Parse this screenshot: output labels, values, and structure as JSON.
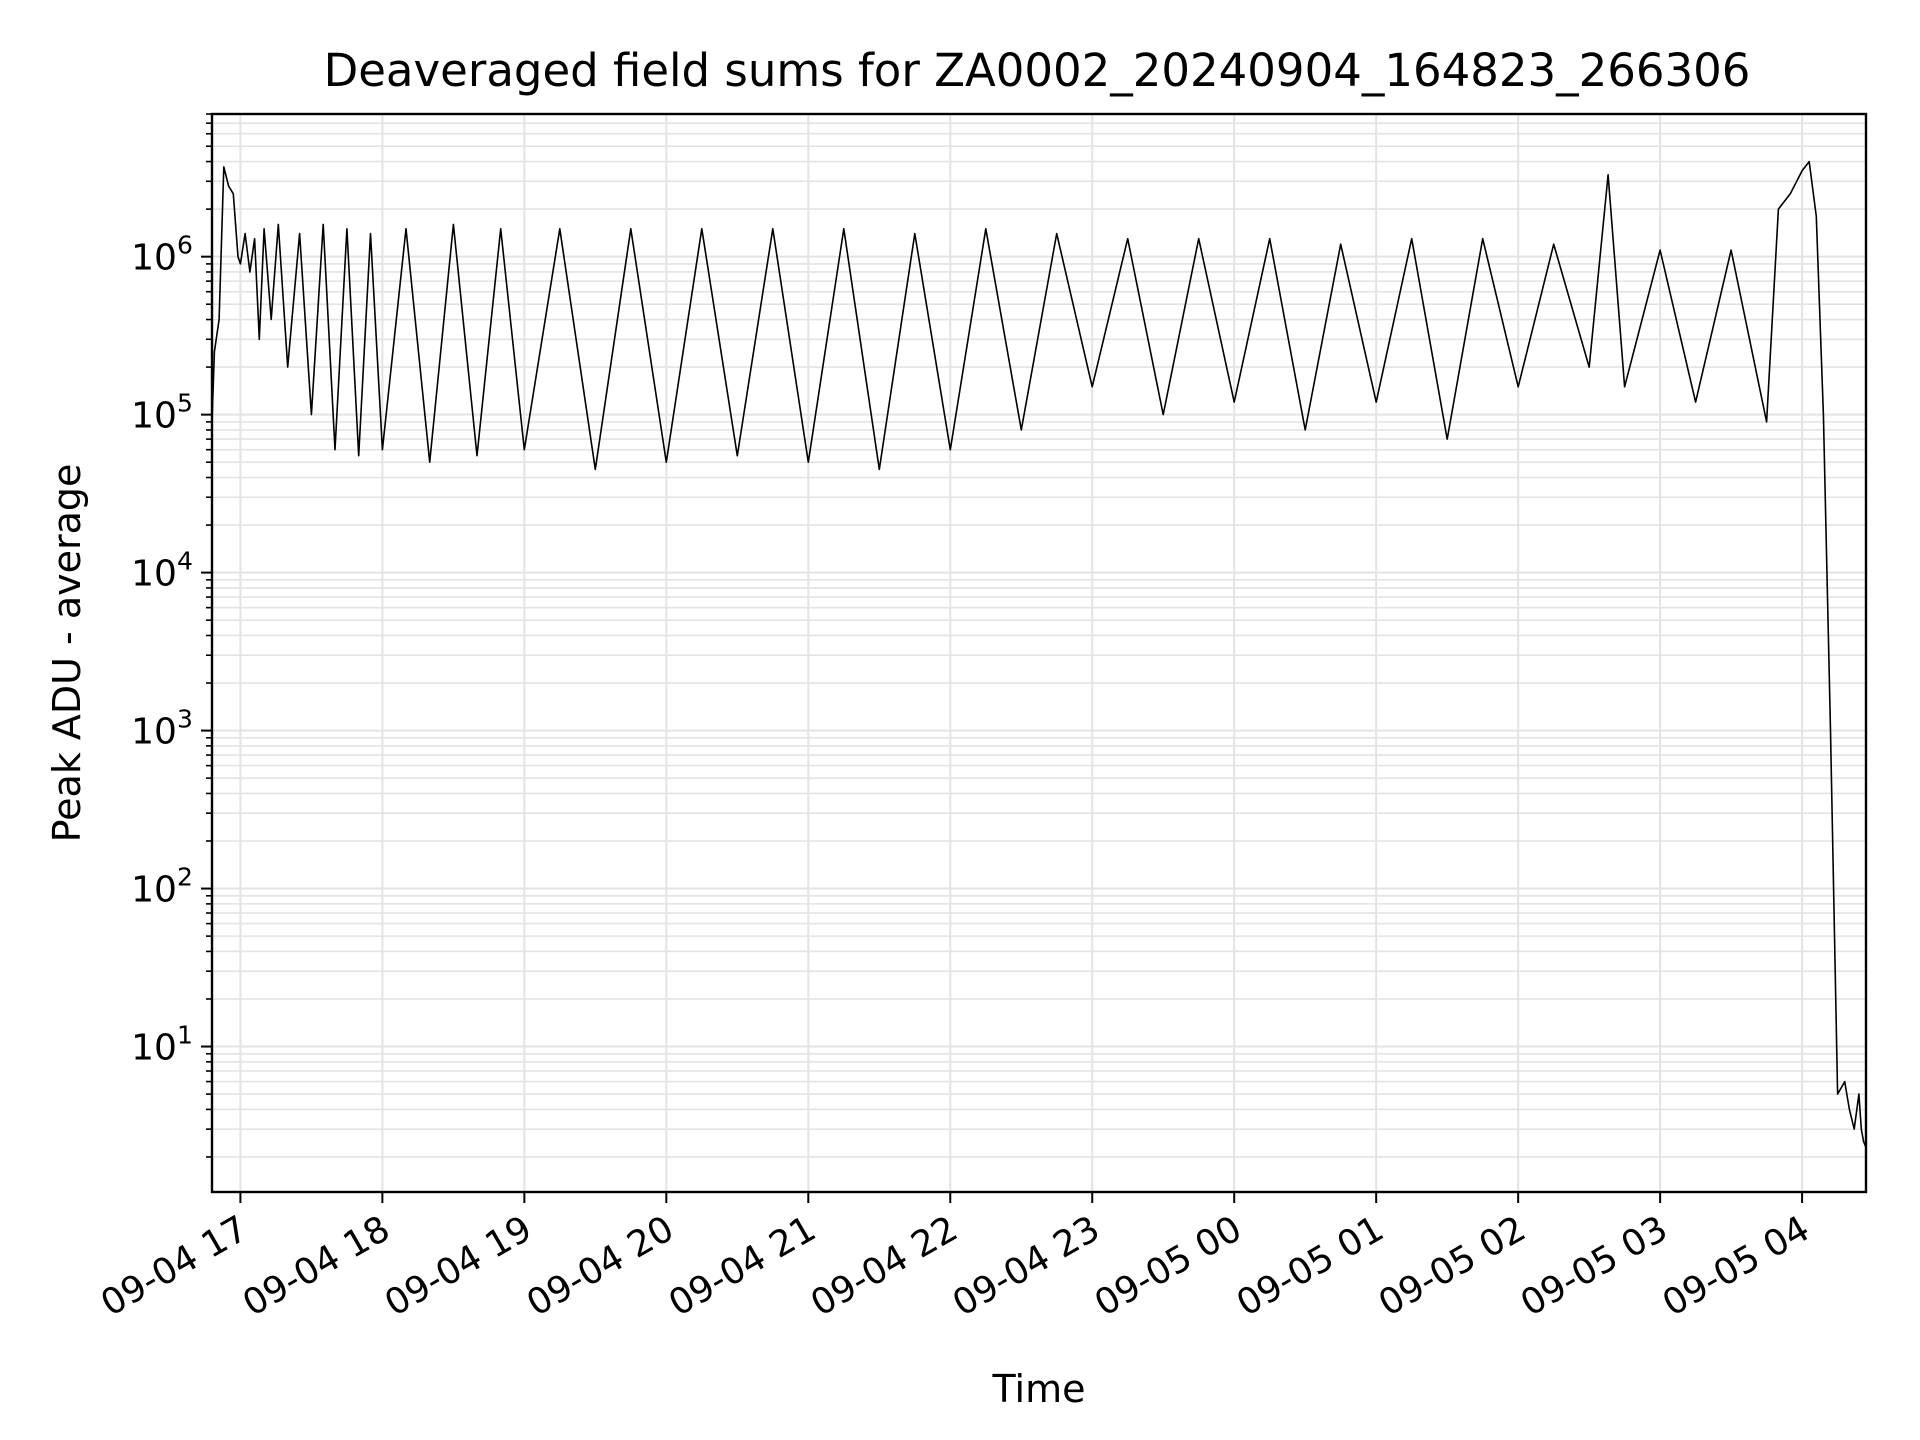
{
  "chart_data": {
    "type": "line",
    "title": "Deaveraged field sums for ZA0002_20240904_164823_266306",
    "xlabel": "Time",
    "ylabel": "Peak ADU - average",
    "x_tick_labels": [
      "09-04 17",
      "09-04 18",
      "09-04 19",
      "09-04 20",
      "09-04 21",
      "09-04 22",
      "09-04 23",
      "09-05 00",
      "09-05 01",
      "09-05 02",
      "09-05 03",
      "09-05 04"
    ],
    "x_ticks": [
      "2024-09-04T17:00",
      "2024-09-04T18:00",
      "2024-09-04T19:00",
      "2024-09-04T20:00",
      "2024-09-04T21:00",
      "2024-09-04T22:00",
      "2024-09-04T23:00",
      "2024-09-05T00:00",
      "2024-09-05T01:00",
      "2024-09-05T02:00",
      "2024-09-05T03:00",
      "2024-09-05T04:00"
    ],
    "xlim": [
      "2024-09-04T16:48",
      "2024-09-05T04:27"
    ],
    "y_scale": "log",
    "ylim": [
      1.2,
      8000000
    ],
    "y_tick_values": [
      10,
      100,
      1000,
      10000,
      100000,
      1000000
    ],
    "y_tick_base": "10",
    "y_tick_exponents": [
      "1",
      "2",
      "3",
      "4",
      "5",
      "6"
    ],
    "grid": true,
    "line_color": "#000000",
    "series": [
      {
        "x": [
          "2024-09-04T16:48",
          "2024-09-04T16:49",
          "2024-09-04T16:51",
          "2024-09-04T16:53",
          "2024-09-04T16:55",
          "2024-09-04T16:57",
          "2024-09-04T16:59",
          "2024-09-04T17:00",
          "2024-09-04T17:02",
          "2024-09-04T17:04",
          "2024-09-04T17:06",
          "2024-09-04T17:08",
          "2024-09-04T17:10",
          "2024-09-04T17:13",
          "2024-09-04T17:16",
          "2024-09-04T17:20",
          "2024-09-04T17:25",
          "2024-09-04T17:30",
          "2024-09-04T17:35",
          "2024-09-04T17:40",
          "2024-09-04T17:45",
          "2024-09-04T17:50",
          "2024-09-04T17:55",
          "2024-09-04T18:00",
          "2024-09-04T18:10",
          "2024-09-04T18:20",
          "2024-09-04T18:30",
          "2024-09-04T18:40",
          "2024-09-04T18:50",
          "2024-09-04T19:00",
          "2024-09-04T19:15",
          "2024-09-04T19:30",
          "2024-09-04T19:45",
          "2024-09-04T20:00",
          "2024-09-04T20:15",
          "2024-09-04T20:30",
          "2024-09-04T20:45",
          "2024-09-04T21:00",
          "2024-09-04T21:15",
          "2024-09-04T21:30",
          "2024-09-04T21:45",
          "2024-09-04T22:00",
          "2024-09-04T22:15",
          "2024-09-04T22:30",
          "2024-09-04T22:45",
          "2024-09-04T23:00",
          "2024-09-04T23:15",
          "2024-09-04T23:30",
          "2024-09-04T23:45",
          "2024-09-05T00:00",
          "2024-09-05T00:15",
          "2024-09-05T00:30",
          "2024-09-05T00:45",
          "2024-09-05T01:00",
          "2024-09-05T01:15",
          "2024-09-05T01:30",
          "2024-09-05T01:45",
          "2024-09-05T02:00",
          "2024-09-05T02:15",
          "2024-09-05T02:30",
          "2024-09-05T02:38",
          "2024-09-05T02:45",
          "2024-09-05T03:00",
          "2024-09-05T03:15",
          "2024-09-05T03:30",
          "2024-09-05T03:45",
          "2024-09-05T03:50",
          "2024-09-05T03:55",
          "2024-09-05T04:00",
          "2024-09-05T04:03",
          "2024-09-05T04:06",
          "2024-09-05T04:09",
          "2024-09-05T04:12",
          "2024-09-05T04:15",
          "2024-09-05T04:18",
          "2024-09-05T04:20",
          "2024-09-05T04:22",
          "2024-09-05T04:24",
          "2024-09-05T04:25",
          "2024-09-05T04:26",
          "2024-09-05T04:27"
        ],
        "y": [
          90000,
          250000,
          400000,
          3700000,
          2800000,
          2500000,
          1000000,
          900000,
          1400000,
          800000,
          1300000,
          300000,
          1500000,
          400000,
          1600000,
          200000,
          1400000,
          100000,
          1600000,
          60000,
          1500000,
          55000,
          1400000,
          60000,
          1500000,
          50000,
          1600000,
          55000,
          1500000,
          60000,
          1500000,
          45000,
          1500000,
          50000,
          1500000,
          55000,
          1500000,
          50000,
          1500000,
          45000,
          1400000,
          60000,
          1500000,
          80000,
          1400000,
          150000,
          1300000,
          100000,
          1300000,
          120000,
          1300000,
          80000,
          1200000,
          120000,
          1300000,
          70000,
          1300000,
          150000,
          1200000,
          200000,
          3300000,
          150000,
          1100000,
          120000,
          1100000,
          90000,
          2000000,
          2500000,
          3500000,
          4000000,
          1800000,
          100000,
          1000,
          5,
          6,
          4,
          3,
          5,
          3,
          2.5,
          2.3
        ]
      }
    ]
  }
}
